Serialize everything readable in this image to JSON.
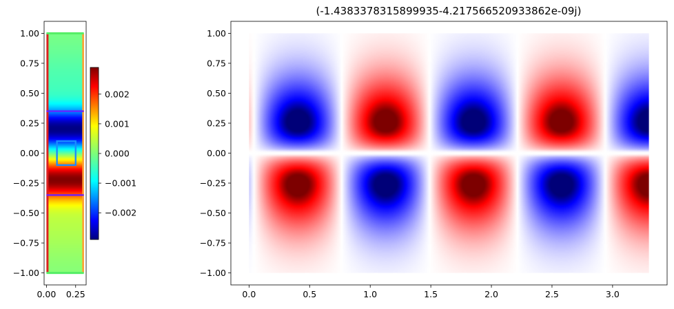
{
  "title": "(-1.4383378315899935-4.217566520933862e-09j)",
  "colors": {
    "wall_red": "#dd2020",
    "wall_orange": "#ffa030",
    "cap_green": "#55ee66",
    "boundary_purple": "#6a20ff",
    "source_blue": "#1a8cff"
  },
  "chart_data": [
    {
      "type": "heatmap",
      "name": "structure-panel",
      "colormap": "jet",
      "xlim": [
        -0.02,
        0.34
      ],
      "ylim": [
        -1.1,
        1.1
      ],
      "x_ticks": [
        0.0,
        0.25
      ],
      "x_tick_labels": [
        "0.00",
        "0.25"
      ],
      "y_ticks": [
        1.0,
        0.75,
        0.5,
        0.25,
        0.0,
        -0.25,
        -0.5,
        -0.75,
        -1.0
      ],
      "y_tick_labels": [
        "1.00",
        "0.75",
        "0.50",
        "0.25",
        "0.00",
        "−0.25",
        "−0.50",
        "−0.75",
        "−1.00"
      ],
      "field_extent": {
        "x": [
          0.0,
          0.32
        ],
        "y": [
          -1.0,
          1.0
        ]
      },
      "pml_cap_lines_y": [
        1.0,
        -1.0
      ],
      "interface_lines_y": [
        0.35,
        -0.35
      ],
      "left_wall_x": 0.0,
      "right_wall_x": 0.32,
      "source_box": {
        "x": [
          0.09,
          0.25
        ],
        "y": [
          -0.1,
          0.1
        ]
      }
    },
    {
      "type": "colorbar",
      "name": "structure-colorbar",
      "colormap": "jet",
      "range": [
        -0.0029,
        0.0029
      ],
      "ticks": [
        0.002,
        0.001,
        0.0,
        -0.001,
        -0.002
      ],
      "tick_labels": [
        "0.002",
        "0.001",
        "0.000",
        "−0.001",
        "−0.002"
      ]
    },
    {
      "type": "heatmap",
      "name": "mode-field-panel",
      "colormap": "bwr",
      "title": "(-1.4383378315899935-4.217566520933862e-09j)",
      "xlim": [
        -0.15,
        3.45
      ],
      "ylim": [
        -1.1,
        1.1
      ],
      "x_ticks": [
        0.0,
        0.5,
        1.0,
        1.5,
        2.0,
        2.5,
        3.0
      ],
      "x_tick_labels": [
        "0.0",
        "0.5",
        "1.0",
        "1.5",
        "2.0",
        "2.5",
        "3.0"
      ],
      "y_ticks": [
        1.0,
        0.75,
        0.5,
        0.25,
        0.0,
        -0.25,
        -0.5,
        -0.75,
        -1.0
      ],
      "y_tick_labels": [
        "1.00",
        "0.75",
        "0.50",
        "0.25",
        "0.00",
        "−0.25",
        "−0.50",
        "−0.75",
        "−1.00"
      ],
      "field_extent": {
        "x": [
          0.0,
          3.3
        ],
        "y": [
          -1.0,
          1.0
        ]
      },
      "wave_period_x": 1.45,
      "lobe_peak_y": 0.28
    }
  ]
}
